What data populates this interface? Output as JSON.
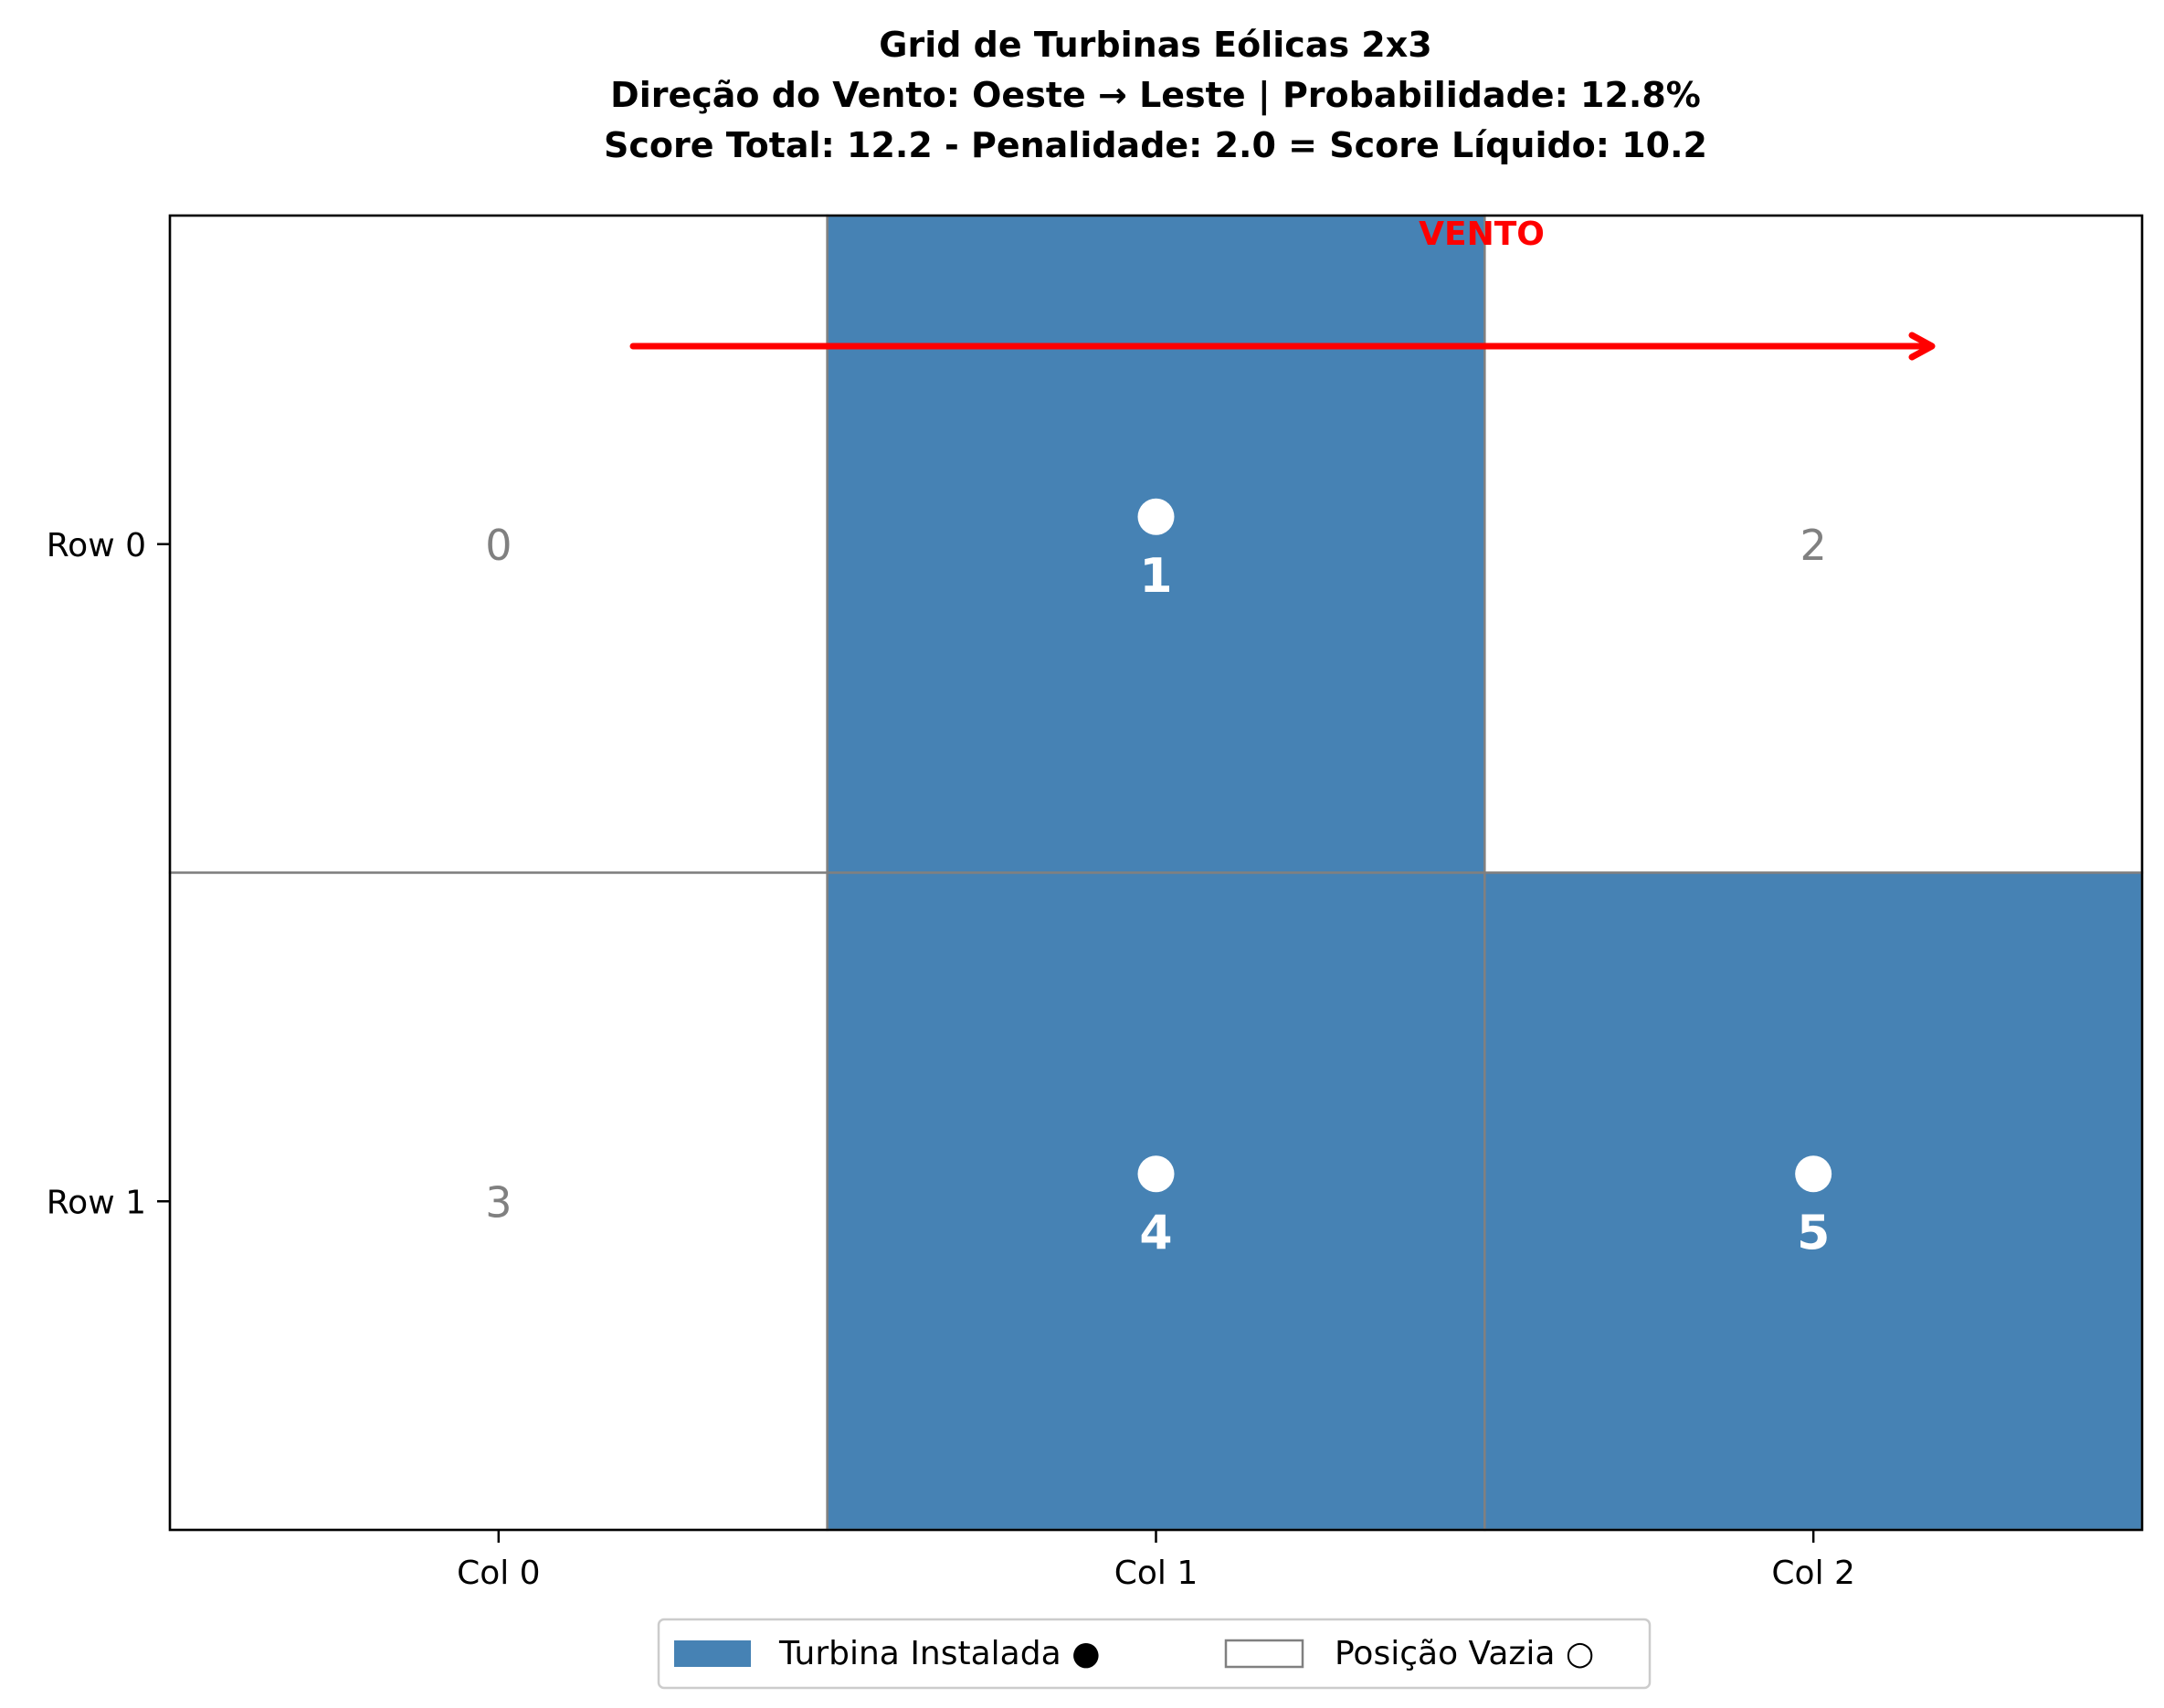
{
  "chart_data": {
    "type": "heatmap",
    "title_lines": [
      "Grid de Turbinas Eólicas 2x3",
      "Direção do Vento: Oeste → Leste | Probabilidade: 12.8%",
      "Score Total: 12.2 - Penalidade: 2.0 = Score Líquido: 10.2"
    ],
    "rows": [
      "Row 0",
      "Row 1"
    ],
    "columns": [
      "Col 0",
      "Col 1",
      "Col 2"
    ],
    "cells": [
      {
        "index": 0,
        "label": "0",
        "row": 0,
        "col": 0,
        "turbine": false
      },
      {
        "index": 1,
        "label": "1",
        "row": 0,
        "col": 1,
        "turbine": true
      },
      {
        "index": 2,
        "label": "2",
        "row": 0,
        "col": 2,
        "turbine": false
      },
      {
        "index": 3,
        "label": "3",
        "row": 1,
        "col": 0,
        "turbine": false
      },
      {
        "index": 4,
        "label": "4",
        "row": 1,
        "col": 1,
        "turbine": true
      },
      {
        "index": 5,
        "label": "5",
        "row": 1,
        "col": 2,
        "turbine": true
      }
    ],
    "wind": {
      "label": "VENTO",
      "direction": "west-to-east",
      "color": "#ff0000"
    },
    "legend": [
      {
        "label": "Turbina Instalada ●",
        "kind": "filled",
        "color": "#4682b4"
      },
      {
        "label": "Posição Vazia ○",
        "kind": "empty",
        "color": "#808080"
      }
    ],
    "legend_position": "bottom-center",
    "colors": {
      "turbine": "#4682b4",
      "empty": "#ffffff",
      "grid_line": "#808080",
      "empty_label": "#808080",
      "turbine_label": "#ffffff"
    }
  }
}
